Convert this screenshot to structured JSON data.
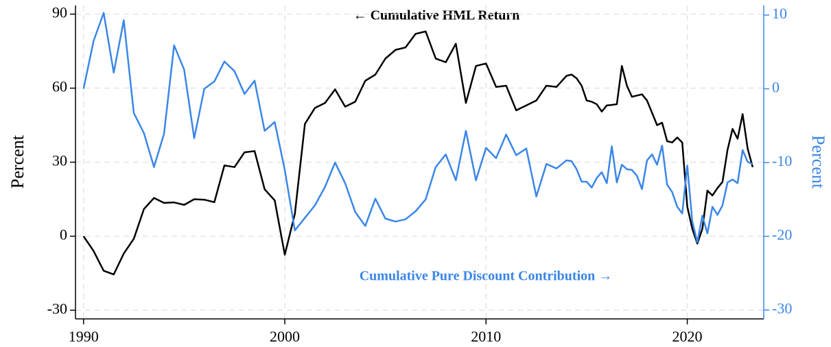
{
  "chart_data": {
    "type": "line",
    "annotations": [
      "← Cumulative HML Return",
      "Cumulative Pure Discount Contribution →"
    ],
    "ylabel": "Percent",
    "y2label": "Percent",
    "x": [
      1990,
      1990.5,
      1991,
      1991.5,
      1992,
      1992.5,
      1993,
      1993.5,
      1994,
      1994.5,
      1995,
      1995.5,
      1996,
      1996.5,
      1997,
      1997.5,
      1998,
      1998.5,
      1999,
      1999.5,
      2000,
      2000.5,
      2001,
      2001.5,
      2002,
      2002.5,
      2003,
      2003.5,
      2004,
      2004.5,
      2005,
      2005.5,
      2006,
      2006.5,
      2007,
      2007.5,
      2008,
      2008.5,
      2009,
      2009.5,
      2010,
      2010.5,
      2011,
      2011.5,
      2012,
      2012.5,
      2013,
      2013.5,
      2014,
      2014.25,
      2014.5,
      2014.75,
      2015,
      2015.25,
      2015.5,
      2015.75,
      2016,
      2016.25,
      2016.5,
      2016.75,
      2017,
      2017.25,
      2017.5,
      2017.75,
      2018,
      2018.25,
      2018.5,
      2018.75,
      2019,
      2019.25,
      2019.5,
      2019.75,
      2020,
      2020.25,
      2020.5,
      2020.75,
      2021,
      2021.25,
      2021.5,
      2021.75,
      2022,
      2022.25,
      2022.5,
      2022.75,
      2023,
      2023.25
    ],
    "series": [
      {
        "name": "Cumulative HML Return",
        "color": "#000000",
        "axis": "y",
        "values": [
          0,
          -6,
          -14,
          -15.5,
          -7,
          -1,
          11,
          15.5,
          13.5,
          13.7,
          12.7,
          15,
          14.8,
          13.8,
          28.7,
          28,
          34,
          34.5,
          19,
          14.5,
          -7.5,
          9,
          45.5,
          52,
          54,
          59.5,
          52.5,
          54.5,
          63,
          65.5,
          72,
          75.5,
          76.5,
          82,
          83,
          72,
          70.5,
          78,
          54,
          69,
          70,
          60.5,
          61,
          51,
          53,
          55,
          61,
          60.5,
          65,
          65.5,
          64,
          61,
          55,
          54.5,
          53.5,
          50.5,
          53,
          53.2,
          53.5,
          69,
          61,
          56.5,
          57,
          57.5,
          55,
          50,
          45,
          46,
          38.5,
          38,
          40,
          38,
          12,
          3,
          -3,
          3,
          18.5,
          16.5,
          19.5,
          22,
          35,
          43.5,
          39.5,
          49.5,
          35.5,
          28
        ]
      },
      {
        "name": "Cumulative Pure Discount Contribution",
        "color": "#3a86e8",
        "axis": "y2",
        "values": [
          0,
          6.5,
          10.3,
          2.2,
          9.3,
          -3.3,
          -6,
          -10.6,
          -6.1,
          5.9,
          2.6,
          -6.7,
          0,
          1,
          3.7,
          2.4,
          -0.7,
          1.1,
          -5.7,
          -4.5,
          -11,
          -19.2,
          -17.5,
          -15.8,
          -13.3,
          -10,
          -12.8,
          -16.7,
          -18.6,
          -14.9,
          -17.6,
          -18,
          -17.7,
          -16.6,
          -15,
          -10.6,
          -8.9,
          -12.4,
          -5.7,
          -12.4,
          -8,
          -9.4,
          -6.2,
          -9,
          -8.1,
          -14.6,
          -10.2,
          -10.8,
          -9.7,
          -9.8,
          -10.9,
          -12.6,
          -12.6,
          -13.4,
          -12.1,
          -11.3,
          -12.8,
          -7.8,
          -12.7,
          -10.3,
          -10.9,
          -11,
          -11.8,
          -13.6,
          -9.7,
          -8.9,
          -10.3,
          -7.7,
          -13,
          -14,
          -16,
          -16.9,
          -10.4,
          -18,
          -20.8,
          -17.2,
          -19.6,
          -16,
          -17.1,
          -15.8,
          -12.7,
          -12.3,
          -12.8,
          -8.3,
          -9.9,
          -10.2
        ]
      }
    ],
    "xlim": [
      1989.6,
      2023.8
    ],
    "xticks": [
      1990,
      2000,
      2010,
      2020
    ],
    "ylim": [
      -33.5,
      93.5
    ],
    "yticks": [
      -30,
      0,
      30,
      60,
      90
    ],
    "y2lim": [
      -31.2,
      11.3
    ],
    "y2ticks": [
      -30,
      -20,
      -10,
      0,
      10
    ],
    "grid": true
  }
}
